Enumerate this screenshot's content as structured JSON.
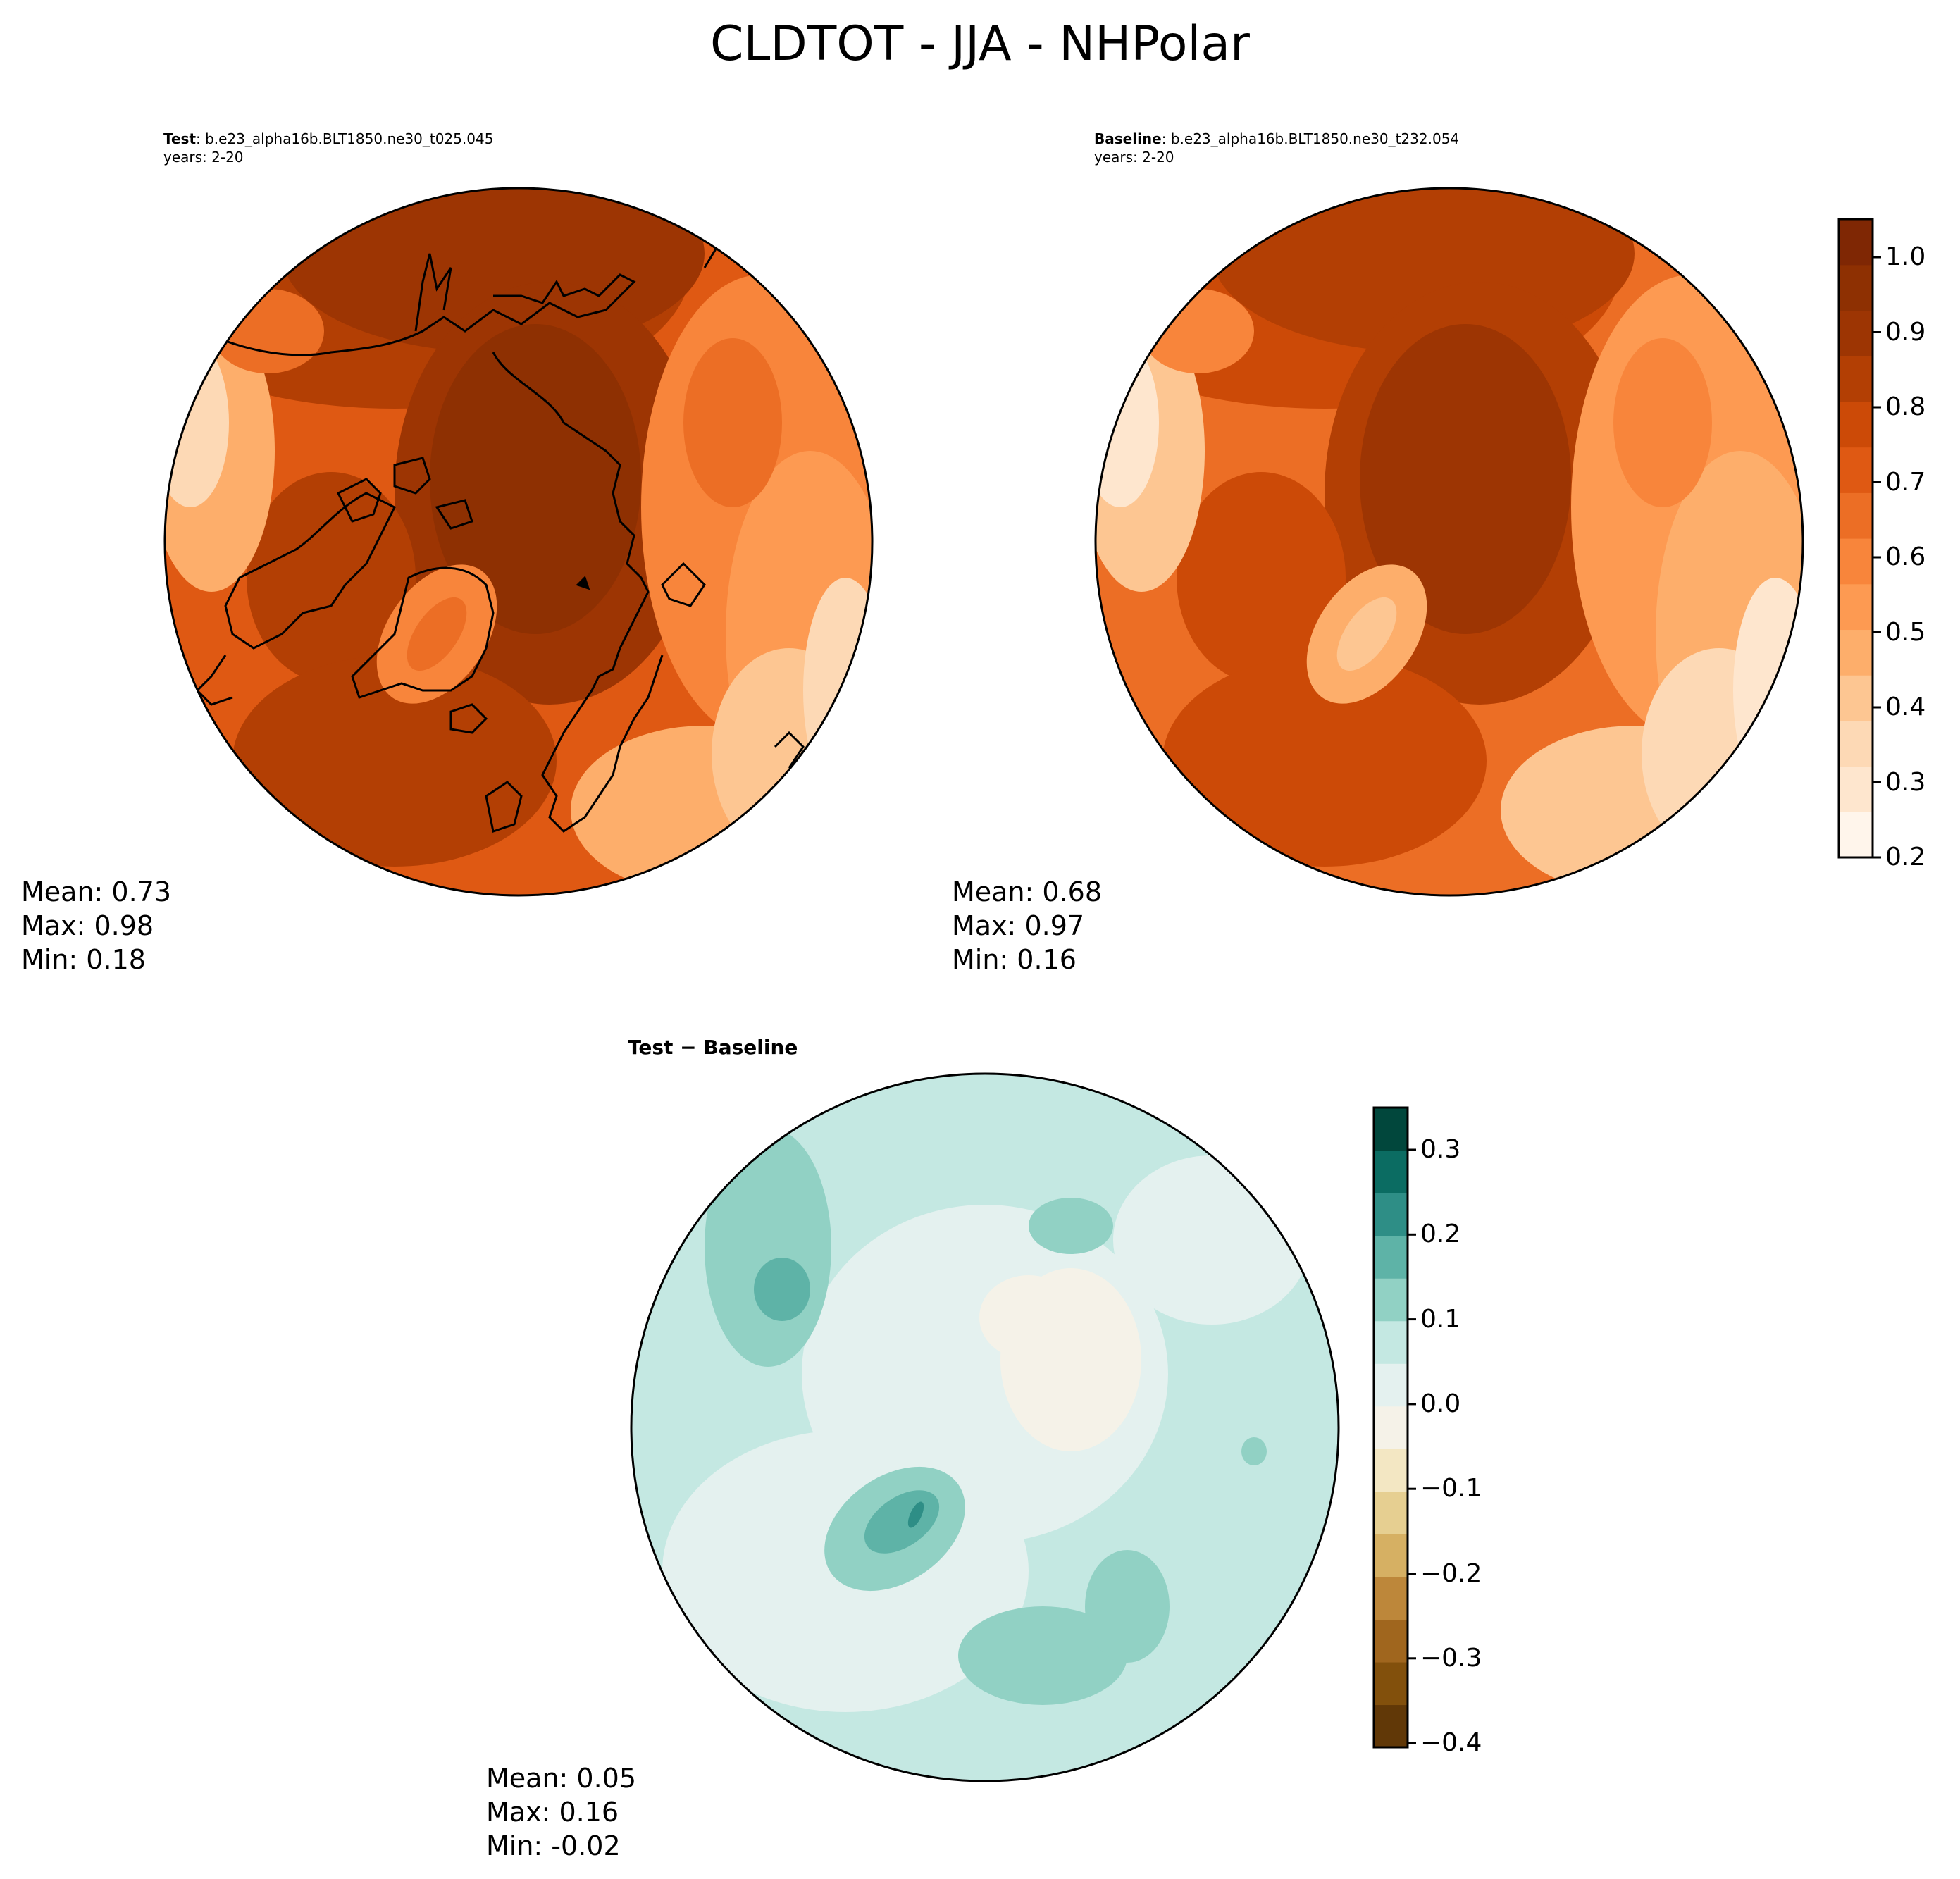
{
  "title": "CLDTOT - JJA - NHPolar",
  "panels": {
    "test": {
      "label_bold": "Test",
      "label_rest": ": b.e23_alpha16b.BLT1850.ne30_t025.045",
      "years": "years: 2-20",
      "mean_label": "Mean:  0.73",
      "max_label": "Max:  0.98",
      "min_label": "Min:  0.18"
    },
    "baseline": {
      "label_bold": "Baseline",
      "label_rest": ": b.e23_alpha16b.BLT1850.ne30_t232.054",
      "years": "years: 2-20",
      "mean_label": "Mean:  0.68",
      "max_label": "Max:  0.97",
      "min_label": "Min:  0.16"
    },
    "diff": {
      "label": "Test − Baseline",
      "mean_label": "Mean:  0.05",
      "max_label": "Max:  0.16",
      "min_label": "Min: -0.02"
    }
  },
  "colorbars": {
    "main": {
      "ticks": [
        "1.0",
        "0.9",
        "0.8",
        "0.7",
        "0.6",
        "0.5",
        "0.4",
        "0.3",
        "0.2"
      ],
      "colors": [
        "#fff5eb",
        "#fee6ce",
        "#fdd9b5",
        "#fdc692",
        "#fdae6b",
        "#fd9a52",
        "#f8853b",
        "#ec6e25",
        "#df5913",
        "#cc4a07",
        "#b33f04",
        "#9d3503",
        "#8e3002",
        "#7f2704"
      ]
    },
    "diff": {
      "ticks": [
        "0.3",
        "0.2",
        "0.1",
        "0.0",
        "−0.1",
        "−0.2",
        "−0.3",
        "−0.4"
      ],
      "colors": [
        "#613807",
        "#82500c",
        "#a0661e",
        "#bd873a",
        "#d6b063",
        "#e6cf91",
        "#f3e7c3",
        "#f5f2e8",
        "#e4f1ef",
        "#c4e8e2",
        "#91d1c4",
        "#5eb3a7",
        "#2e8e86",
        "#0b6c62",
        "#01473c"
      ]
    }
  },
  "map_colors": {
    "land": "#000000",
    "circle": "#000000"
  }
}
